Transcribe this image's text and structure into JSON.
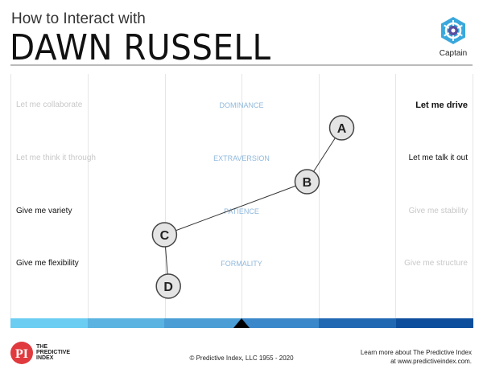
{
  "header": {
    "subtitle": "How to Interact with",
    "name": "DAWN RUSSELL",
    "profile": "Captain",
    "profile_icon": "ship-wheel-icon"
  },
  "rows": [
    {
      "factor": "DOMINANCE",
      "left": "Let me collaborate",
      "right": "Let me drive",
      "left_active": false,
      "right_active": true
    },
    {
      "factor": "EXTRAVERSION",
      "left": "Let me think it through",
      "right": "Let me talk it out",
      "left_active": false,
      "right_active": true
    },
    {
      "factor": "PATIENCE",
      "left": "Give me variety",
      "right": "Give me stability",
      "left_active": true,
      "right_active": false
    },
    {
      "factor": "FORMALITY",
      "left": "Give me flexibility",
      "right": "Give me structure",
      "left_active": true,
      "right_active": false
    }
  ],
  "points": [
    {
      "label": "A",
      "value": 4.3
    },
    {
      "label": "B",
      "value": 3.85
    },
    {
      "label": "C",
      "value": 2.0
    },
    {
      "label": "D",
      "value": 2.05
    }
  ],
  "scale_colors": [
    "#6bcdf2",
    "#5ab3e0",
    "#4a9ed5",
    "#3a88c9",
    "#2168b2",
    "#0c4e9c"
  ],
  "marker_position": 0.5,
  "footer": {
    "logo_letters": "PI",
    "logo_text": "THE PREDICTIVE INDEX",
    "copyright": "© Predictive Index, LLC 1955 - 2020",
    "learn_line1": "Learn more about The Predictive Index",
    "learn_line2": "at www.predictiveindex.com."
  },
  "colors": {
    "brand_red": "#e03a3e",
    "active_text": "#111111",
    "inactive_text": "#c8c8c8"
  }
}
